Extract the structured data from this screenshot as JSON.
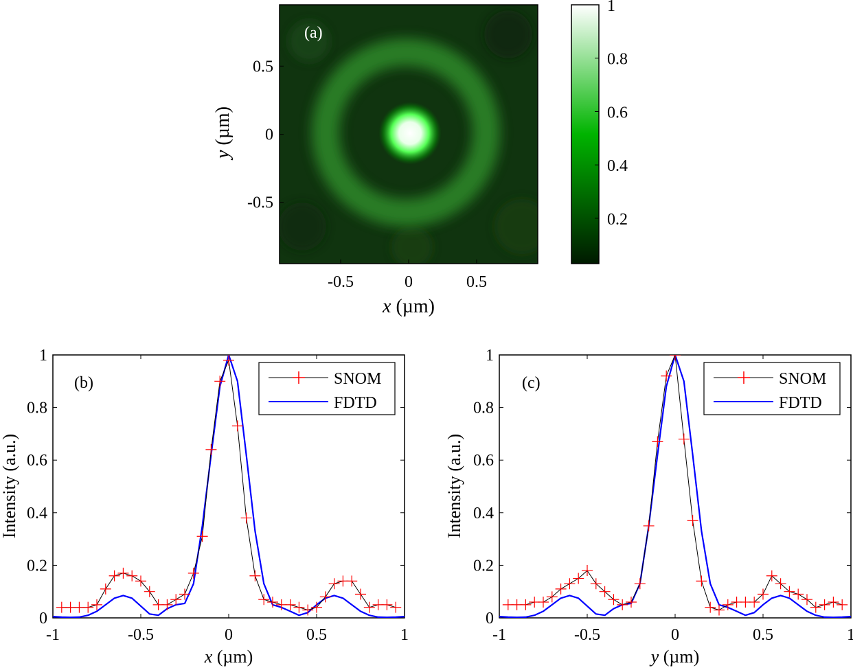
{
  "chart_data": [
    {
      "id": "a",
      "type": "heatmap",
      "panel_label": "(a)",
      "xlabel": {
        "italic": "x",
        "unit": "(µm)"
      },
      "ylabel": {
        "italic": "y",
        "unit": "(µm)"
      },
      "xlim": [
        -0.95,
        0.95
      ],
      "ylim": [
        -0.95,
        0.95
      ],
      "x_ticks": [
        {
          "v": -0.5,
          "label": "-0.5"
        },
        {
          "v": 0,
          "label": "0"
        },
        {
          "v": 0.5,
          "label": "0.5"
        }
      ],
      "y_ticks": [
        {
          "v": 0.5,
          "label": "0.5"
        },
        {
          "v": 0,
          "label": "0"
        },
        {
          "v": -0.5,
          "label": "-0.5"
        }
      ],
      "colorbar": {
        "range": [
          0.03,
          1
        ],
        "ticks": [
          {
            "v": 1,
            "label": "1"
          },
          {
            "v": 0.8,
            "label": "0.8"
          },
          {
            "v": 0.6,
            "label": "0.6"
          },
          {
            "v": 0.4,
            "label": "0.4"
          },
          {
            "v": 0.2,
            "label": "0.2"
          }
        ],
        "colormap": [
          "#001a00",
          "#00b400",
          "#ffffff"
        ]
      },
      "features": {
        "central_spot": {
          "x": 0,
          "y": 0,
          "peak": 1.0,
          "fwhm_um": 0.22
        },
        "ring": {
          "center": [
            0,
            0
          ],
          "radius_um": 0.62,
          "intensity": 0.3
        }
      }
    },
    {
      "id": "b",
      "type": "line",
      "panel_label": "(b)",
      "xlabel": {
        "italic": "x",
        "unit": "(µm)"
      },
      "ylabel": "Intensity (a.u.)",
      "xlim": [
        -1,
        1
      ],
      "ylim": [
        0,
        1
      ],
      "x_ticks": [
        {
          "v": -1,
          "label": "-1"
        },
        {
          "v": -0.5,
          "label": "-0.5"
        },
        {
          "v": 0,
          "label": "0"
        },
        {
          "v": 0.5,
          "label": "0.5"
        },
        {
          "v": 1,
          "label": "1"
        }
      ],
      "y_ticks": [
        {
          "v": 0,
          "label": "0"
        },
        {
          "v": 0.2,
          "label": "0.2"
        },
        {
          "v": 0.4,
          "label": "0.4"
        },
        {
          "v": 0.6,
          "label": "0.6"
        },
        {
          "v": 0.8,
          "label": "0.8"
        },
        {
          "v": 1,
          "label": "1"
        }
      ],
      "legend": {
        "placement": "top-right",
        "entries": [
          "SNOM",
          "FDTD"
        ]
      },
      "series": [
        {
          "name": "SNOM",
          "color": "#ff0000",
          "line_color": "#000000",
          "marker": "plus",
          "x": [
            -0.95,
            -0.9,
            -0.85,
            -0.8,
            -0.75,
            -0.7,
            -0.65,
            -0.6,
            -0.55,
            -0.5,
            -0.45,
            -0.4,
            -0.35,
            -0.3,
            -0.25,
            -0.2,
            -0.15,
            -0.1,
            -0.05,
            0.0,
            0.05,
            0.1,
            0.15,
            0.2,
            0.25,
            0.3,
            0.35,
            0.4,
            0.45,
            0.5,
            0.55,
            0.6,
            0.65,
            0.7,
            0.75,
            0.8,
            0.85,
            0.9,
            0.95
          ],
          "y": [
            0.04,
            0.04,
            0.04,
            0.04,
            0.05,
            0.11,
            0.16,
            0.17,
            0.16,
            0.14,
            0.1,
            0.05,
            0.05,
            0.07,
            0.09,
            0.17,
            0.31,
            0.64,
            0.9,
            0.98,
            0.73,
            0.38,
            0.16,
            0.07,
            0.06,
            0.05,
            0.05,
            0.04,
            0.03,
            0.04,
            0.08,
            0.13,
            0.14,
            0.14,
            0.09,
            0.04,
            0.05,
            0.05,
            0.04
          ]
        },
        {
          "name": "FDTD",
          "color": "#0000ff",
          "x": [
            -1.0,
            -0.95,
            -0.9,
            -0.85,
            -0.8,
            -0.75,
            -0.7,
            -0.65,
            -0.6,
            -0.55,
            -0.5,
            -0.45,
            -0.4,
            -0.35,
            -0.3,
            -0.25,
            -0.2,
            -0.15,
            -0.1,
            -0.05,
            0.0,
            0.05,
            0.1,
            0.15,
            0.2,
            0.25,
            0.3,
            0.35,
            0.4,
            0.45,
            0.5,
            0.55,
            0.6,
            0.65,
            0.7,
            0.75,
            0.8,
            0.85,
            0.9,
            0.95,
            1.0
          ],
          "y": [
            0.005,
            0.003,
            0.002,
            0.003,
            0.01,
            0.025,
            0.05,
            0.075,
            0.085,
            0.075,
            0.045,
            0.015,
            0.01,
            0.035,
            0.05,
            0.055,
            0.13,
            0.35,
            0.62,
            0.88,
            1.0,
            0.9,
            0.62,
            0.33,
            0.13,
            0.05,
            0.04,
            0.025,
            0.01,
            0.02,
            0.05,
            0.075,
            0.085,
            0.075,
            0.05,
            0.025,
            0.01,
            0.003,
            0.002,
            0.003,
            0.005
          ]
        }
      ]
    },
    {
      "id": "c",
      "type": "line",
      "panel_label": "(c)",
      "xlabel": {
        "italic": "y",
        "unit": "(µm)"
      },
      "ylabel": "Intensity (a.u.)",
      "xlim": [
        -1,
        1
      ],
      "ylim": [
        0,
        1
      ],
      "x_ticks": [
        {
          "v": -1,
          "label": "-1"
        },
        {
          "v": -0.5,
          "label": "-0.5"
        },
        {
          "v": 0,
          "label": "0"
        },
        {
          "v": 0.5,
          "label": "0.5"
        },
        {
          "v": 1,
          "label": "1"
        }
      ],
      "y_ticks": [
        {
          "v": 0,
          "label": "0"
        },
        {
          "v": 0.2,
          "label": "0.2"
        },
        {
          "v": 0.4,
          "label": "0.4"
        },
        {
          "v": 0.6,
          "label": "0.6"
        },
        {
          "v": 0.8,
          "label": "0.8"
        },
        {
          "v": 1,
          "label": "1"
        }
      ],
      "legend": {
        "placement": "top-right",
        "entries": [
          "SNOM",
          "FDTD"
        ]
      },
      "series": [
        {
          "name": "SNOM",
          "color": "#ff0000",
          "line_color": "#000000",
          "marker": "plus",
          "x": [
            -0.95,
            -0.9,
            -0.85,
            -0.8,
            -0.75,
            -0.7,
            -0.65,
            -0.6,
            -0.55,
            -0.5,
            -0.45,
            -0.4,
            -0.35,
            -0.3,
            -0.25,
            -0.2,
            -0.15,
            -0.1,
            -0.05,
            0.0,
            0.05,
            0.1,
            0.15,
            0.2,
            0.25,
            0.3,
            0.35,
            0.4,
            0.45,
            0.5,
            0.55,
            0.6,
            0.65,
            0.7,
            0.75,
            0.8,
            0.85,
            0.9,
            0.95
          ],
          "y": [
            0.05,
            0.05,
            0.05,
            0.06,
            0.06,
            0.08,
            0.11,
            0.13,
            0.15,
            0.18,
            0.13,
            0.1,
            0.07,
            0.05,
            0.06,
            0.13,
            0.35,
            0.67,
            0.92,
            1.0,
            0.68,
            0.37,
            0.14,
            0.04,
            0.03,
            0.05,
            0.06,
            0.06,
            0.06,
            0.09,
            0.16,
            0.13,
            0.1,
            0.09,
            0.07,
            0.04,
            0.05,
            0.06,
            0.05
          ]
        },
        {
          "name": "FDTD",
          "color": "#0000ff",
          "x": [
            -1.0,
            -0.95,
            -0.9,
            -0.85,
            -0.8,
            -0.75,
            -0.7,
            -0.65,
            -0.6,
            -0.55,
            -0.5,
            -0.45,
            -0.4,
            -0.35,
            -0.3,
            -0.25,
            -0.2,
            -0.15,
            -0.1,
            -0.05,
            0.0,
            0.05,
            0.1,
            0.15,
            0.2,
            0.25,
            0.3,
            0.35,
            0.4,
            0.45,
            0.5,
            0.55,
            0.6,
            0.65,
            0.7,
            0.75,
            0.8,
            0.85,
            0.9,
            0.95,
            1.0
          ],
          "y": [
            0.005,
            0.003,
            0.002,
            0.003,
            0.01,
            0.025,
            0.05,
            0.075,
            0.085,
            0.075,
            0.045,
            0.015,
            0.01,
            0.035,
            0.05,
            0.055,
            0.13,
            0.35,
            0.62,
            0.88,
            1.0,
            0.9,
            0.62,
            0.33,
            0.13,
            0.05,
            0.04,
            0.025,
            0.01,
            0.02,
            0.05,
            0.075,
            0.085,
            0.075,
            0.05,
            0.025,
            0.01,
            0.003,
            0.002,
            0.003,
            0.005
          ]
        }
      ]
    }
  ]
}
